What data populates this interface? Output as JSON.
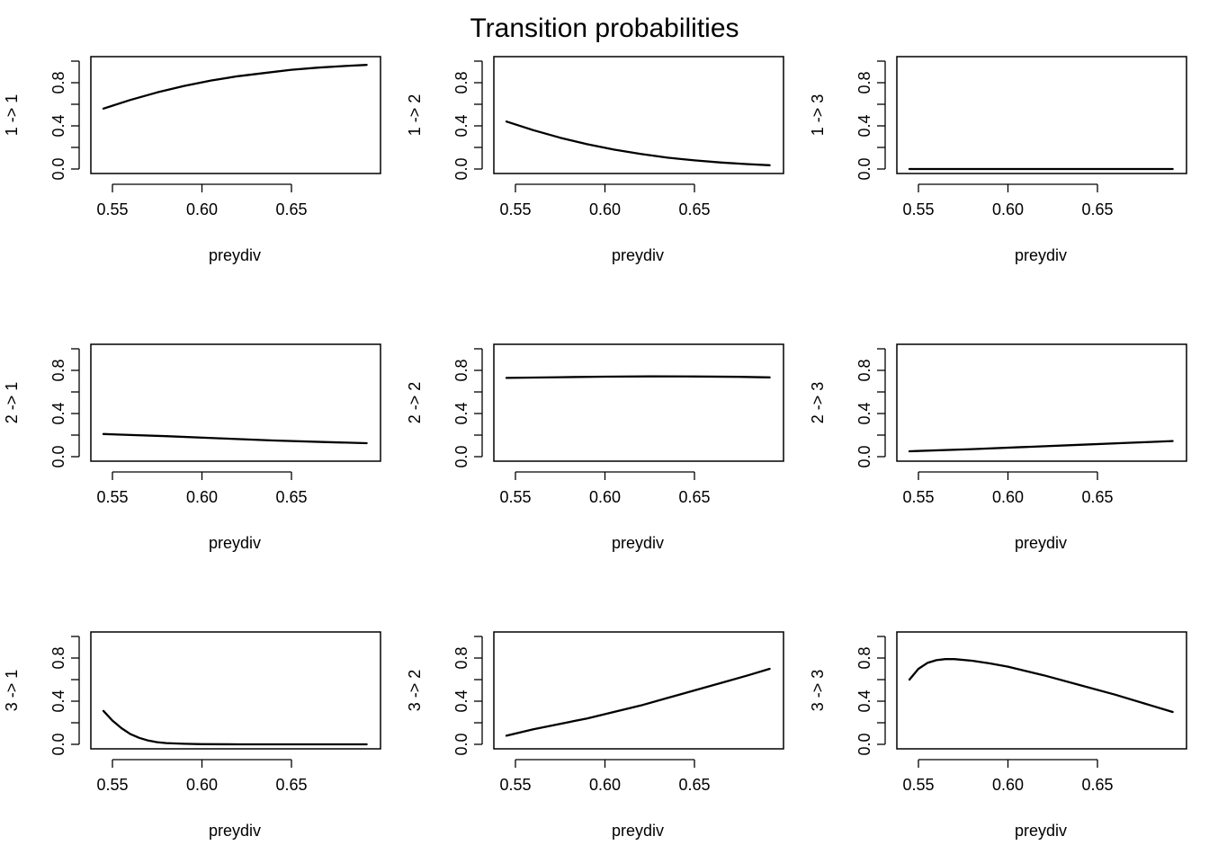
{
  "figure": {
    "title": "Transition probabilities"
  },
  "chart_data": [
    {
      "type": "line",
      "title": "",
      "xlabel": "preydiv",
      "ylabel": "1 -> 1",
      "xlim": [
        0.545,
        0.692
      ],
      "ylim": [
        0,
        1
      ],
      "xticks": [
        "0.55",
        "0.60",
        "0.65"
      ],
      "yticks": [
        "0.0",
        "0.4",
        "0.8"
      ],
      "series": [
        {
          "x": [
            0.545,
            0.56,
            0.575,
            0.59,
            0.605,
            0.62,
            0.635,
            0.65,
            0.665,
            0.68,
            0.692
          ],
          "y": [
            0.56,
            0.64,
            0.71,
            0.77,
            0.82,
            0.86,
            0.89,
            0.92,
            0.94,
            0.955,
            0.965
          ]
        }
      ]
    },
    {
      "type": "line",
      "title": "",
      "xlabel": "preydiv",
      "ylabel": "1 -> 2",
      "xlim": [
        0.545,
        0.692
      ],
      "ylim": [
        0,
        1
      ],
      "xticks": [
        "0.55",
        "0.60",
        "0.65"
      ],
      "yticks": [
        "0.0",
        "0.4",
        "0.8"
      ],
      "series": [
        {
          "x": [
            0.545,
            0.56,
            0.575,
            0.59,
            0.605,
            0.62,
            0.635,
            0.65,
            0.665,
            0.68,
            0.692
          ],
          "y": [
            0.44,
            0.36,
            0.29,
            0.23,
            0.18,
            0.14,
            0.105,
            0.08,
            0.06,
            0.045,
            0.035
          ]
        }
      ]
    },
    {
      "type": "line",
      "title": "",
      "xlabel": "preydiv",
      "ylabel": "1 -> 3",
      "xlim": [
        0.545,
        0.692
      ],
      "ylim": [
        0,
        1
      ],
      "xticks": [
        "0.55",
        "0.60",
        "0.65"
      ],
      "yticks": [
        "0.0",
        "0.4",
        "0.8"
      ],
      "series": [
        {
          "x": [
            0.545,
            0.692
          ],
          "y": [
            0.0,
            0.0
          ]
        }
      ]
    },
    {
      "type": "line",
      "title": "",
      "xlabel": "preydiv",
      "ylabel": "2 -> 1",
      "xlim": [
        0.545,
        0.692
      ],
      "ylim": [
        0,
        1
      ],
      "xticks": [
        "0.55",
        "0.60",
        "0.65"
      ],
      "yticks": [
        "0.0",
        "0.4",
        "0.8"
      ],
      "series": [
        {
          "x": [
            0.545,
            0.58,
            0.61,
            0.64,
            0.67,
            0.692
          ],
          "y": [
            0.21,
            0.19,
            0.17,
            0.15,
            0.135,
            0.125
          ]
        }
      ]
    },
    {
      "type": "line",
      "title": "",
      "xlabel": "preydiv",
      "ylabel": "2 -> 2",
      "xlim": [
        0.545,
        0.692
      ],
      "ylim": [
        0,
        1
      ],
      "xticks": [
        "0.55",
        "0.60",
        "0.65"
      ],
      "yticks": [
        "0.0",
        "0.4",
        "0.8"
      ],
      "series": [
        {
          "x": [
            0.545,
            0.575,
            0.6,
            0.625,
            0.65,
            0.675,
            0.692
          ],
          "y": [
            0.73,
            0.737,
            0.742,
            0.744,
            0.743,
            0.74,
            0.735
          ]
        }
      ]
    },
    {
      "type": "line",
      "title": "",
      "xlabel": "preydiv",
      "ylabel": "2 -> 3",
      "xlim": [
        0.545,
        0.692
      ],
      "ylim": [
        0,
        1
      ],
      "xticks": [
        "0.55",
        "0.60",
        "0.65"
      ],
      "yticks": [
        "0.0",
        "0.4",
        "0.8"
      ],
      "series": [
        {
          "x": [
            0.545,
            0.58,
            0.61,
            0.64,
            0.67,
            0.692
          ],
          "y": [
            0.05,
            0.07,
            0.09,
            0.11,
            0.13,
            0.145
          ]
        }
      ]
    },
    {
      "type": "line",
      "title": "",
      "xlabel": "preydiv",
      "ylabel": "3 -> 1",
      "xlim": [
        0.545,
        0.692
      ],
      "ylim": [
        0,
        1
      ],
      "xticks": [
        "0.55",
        "0.60",
        "0.65"
      ],
      "yticks": [
        "0.0",
        "0.4",
        "0.8"
      ],
      "series": [
        {
          "x": [
            0.545,
            0.55,
            0.555,
            0.56,
            0.565,
            0.57,
            0.575,
            0.58,
            0.59,
            0.6,
            0.62,
            0.65,
            0.692
          ],
          "y": [
            0.31,
            0.22,
            0.15,
            0.095,
            0.06,
            0.035,
            0.02,
            0.012,
            0.005,
            0.002,
            0.0,
            0.0,
            0.0
          ]
        }
      ]
    },
    {
      "type": "line",
      "title": "",
      "xlabel": "preydiv",
      "ylabel": "3 -> 2",
      "xlim": [
        0.545,
        0.692
      ],
      "ylim": [
        0,
        1
      ],
      "xticks": [
        "0.55",
        "0.60",
        "0.65"
      ],
      "yticks": [
        "0.0",
        "0.4",
        "0.8"
      ],
      "series": [
        {
          "x": [
            0.545,
            0.56,
            0.575,
            0.59,
            0.605,
            0.62,
            0.635,
            0.65,
            0.665,
            0.68,
            0.692
          ],
          "y": [
            0.08,
            0.14,
            0.19,
            0.24,
            0.3,
            0.36,
            0.43,
            0.5,
            0.57,
            0.64,
            0.7
          ]
        }
      ]
    },
    {
      "type": "line",
      "title": "",
      "xlabel": "preydiv",
      "ylabel": "3 -> 3",
      "xlim": [
        0.545,
        0.692
      ],
      "ylim": [
        0,
        1
      ],
      "xticks": [
        "0.55",
        "0.60",
        "0.65"
      ],
      "yticks": [
        "0.0",
        "0.4",
        "0.8"
      ],
      "series": [
        {
          "x": [
            0.545,
            0.55,
            0.555,
            0.56,
            0.565,
            0.57,
            0.58,
            0.59,
            0.6,
            0.62,
            0.64,
            0.66,
            0.68,
            0.692
          ],
          "y": [
            0.6,
            0.7,
            0.755,
            0.78,
            0.79,
            0.79,
            0.775,
            0.75,
            0.72,
            0.64,
            0.55,
            0.46,
            0.36,
            0.3
          ]
        }
      ]
    }
  ]
}
